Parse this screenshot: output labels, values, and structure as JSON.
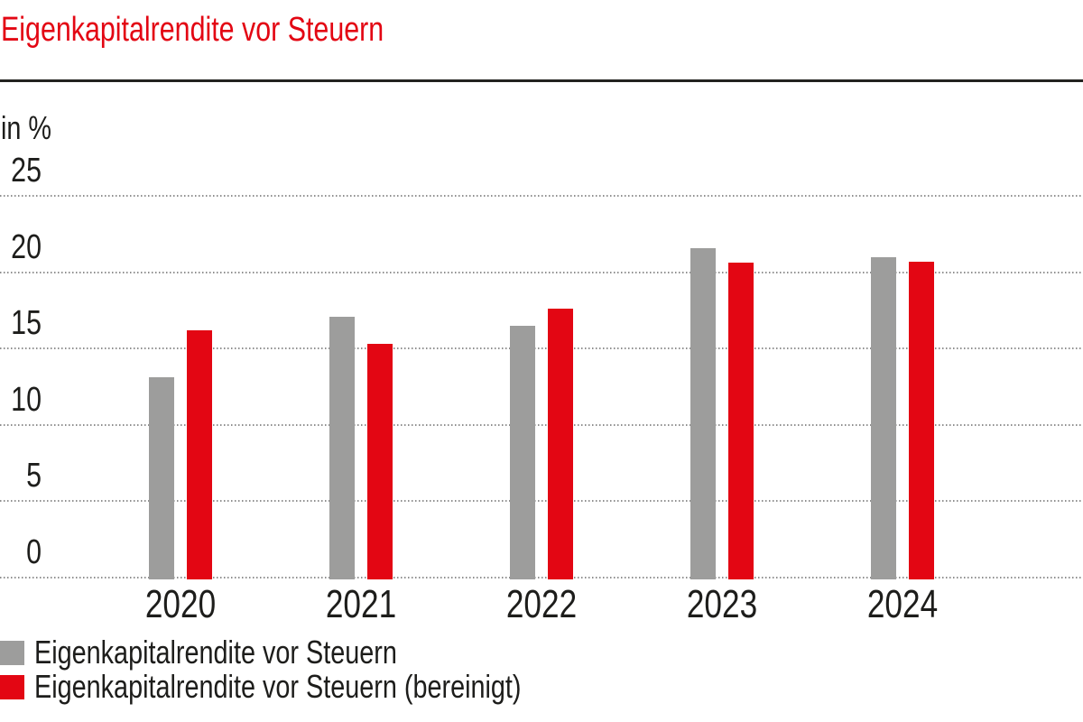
{
  "title": "Eigenkapitalrendite vor Steuern",
  "unit_label": "in %",
  "colors": {
    "accent_red": "#e30613",
    "bar_gray": "#9d9d9c",
    "text_dark": "#1d1d1b",
    "grid_gray": "#8f8f8f",
    "rule_dark": "#232320"
  },
  "chart_data": {
    "type": "bar",
    "title": "Eigenkapitalrendite vor Steuern",
    "ylabel": "in %",
    "categories": [
      "2020",
      "2021",
      "2022",
      "2023",
      "2024"
    ],
    "series": [
      {
        "name": "Eigenkapitalrendite vor Steuern",
        "color": "#9d9d9c",
        "values": [
          13.1,
          17.1,
          16.5,
          21.6,
          21.0
        ]
      },
      {
        "name": "Eigenkapitalrendite vor Steuern (bereinigt)",
        "color": "#e30613",
        "values": [
          16.2,
          15.3,
          17.6,
          20.6,
          20.7
        ]
      }
    ],
    "yticks": [
      0,
      5,
      10,
      15,
      20,
      25
    ],
    "ylim": [
      0,
      25
    ],
    "grid": true,
    "gridline_style": "dotted",
    "legend_position": "bottom-left"
  },
  "legend": {
    "items": [
      {
        "label": "Eigenkapitalrendite vor Steuern",
        "color": "#9d9d9c"
      },
      {
        "label": "Eigenkapitalrendite vor Steuern (bereinigt)",
        "color": "#e30613"
      }
    ]
  }
}
